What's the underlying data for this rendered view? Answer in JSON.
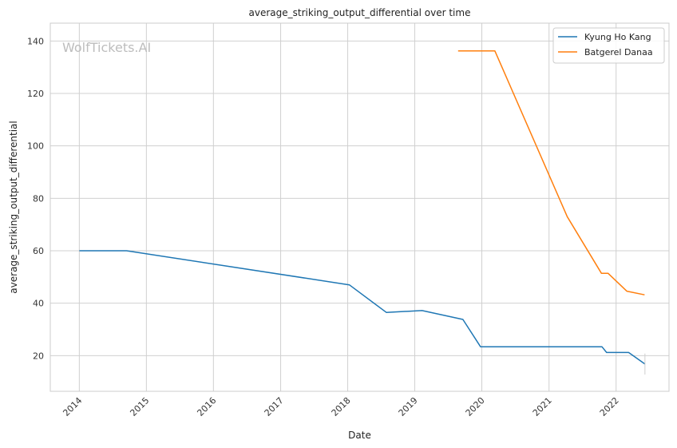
{
  "chart_data": {
    "type": "line",
    "title": "average_striking_output_differential over time",
    "xlabel": "Date",
    "ylabel": "average_striking_output_differential",
    "watermark": "WolfTickets.AI",
    "x_ticks": [
      "2014",
      "2015",
      "2016",
      "2017",
      "2018",
      "2019",
      "2020",
      "2021",
      "2022"
    ],
    "y_ticks": [
      20,
      40,
      60,
      80,
      100,
      120,
      140
    ],
    "xlim": [
      "2013-07-27",
      "2022-10-16"
    ],
    "ylim": [
      6.4,
      146.8
    ],
    "grid": true,
    "legend_position": "top-right",
    "series": [
      {
        "name": "Kyung Ho Kang",
        "color": "#1f77b4",
        "points": [
          [
            "2014-01-01",
            60.0
          ],
          [
            "2014-09-15",
            60.0
          ],
          [
            "2018-01-10",
            47.0
          ],
          [
            "2018-07-30",
            36.5
          ],
          [
            "2019-02-10",
            37.2
          ],
          [
            "2019-09-20",
            33.8
          ],
          [
            "2019-12-25",
            23.4
          ],
          [
            "2021-10-16",
            23.4
          ],
          [
            "2021-11-10",
            21.2
          ],
          [
            "2022-03-10",
            21.2
          ],
          [
            "2022-06-07",
            16.8
          ]
        ]
      },
      {
        "name": "Batgerel Danaa",
        "color": "#ff7f0e",
        "points": [
          [
            "2019-08-25",
            136.2
          ],
          [
            "2020-03-12",
            136.2
          ],
          [
            "2021-04-10",
            73.0
          ],
          [
            "2021-10-13",
            51.4
          ],
          [
            "2021-11-18",
            51.4
          ],
          [
            "2022-02-28",
            44.6
          ],
          [
            "2022-06-05",
            43.2
          ]
        ]
      }
    ]
  }
}
